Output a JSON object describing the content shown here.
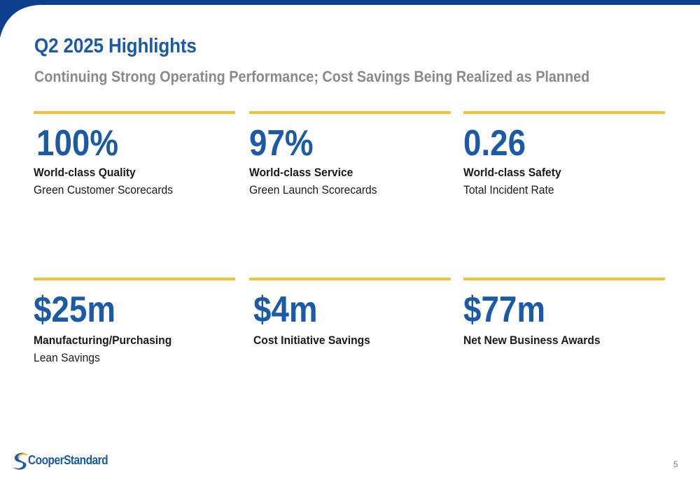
{
  "slide": {
    "title": "Q2 2025 Highlights",
    "subtitle": "Continuing Strong Operating Performance; Cost Savings Being Realized as Planned"
  },
  "metrics": [
    {
      "value": "100%",
      "label": "World-class Quality",
      "desc": "Green Customer Scorecards"
    },
    {
      "value": "97%",
      "label": "World-class Service",
      "desc": "Green Launch Scorecards"
    },
    {
      "value": "0.26",
      "label": "World-class Safety",
      "desc": "Total Incident Rate"
    },
    {
      "value": "$25m",
      "label": "Manufacturing/Purchasing",
      "desc": "Lean Savings"
    },
    {
      "value": "$4m",
      "label": "Cost Initiative Savings",
      "desc": ""
    },
    {
      "value": "$77m",
      "label": "Net New Business Awards",
      "desc": ""
    }
  ],
  "logo": {
    "text": "CooperStandard"
  },
  "page_number": "5",
  "colors": {
    "brand_blue": "#1b5aa6",
    "band_blue": "#0d3f8f",
    "accent_gold": "#f0c23a",
    "subtitle_gray": "#8a8a8a",
    "text_dark": "#1a1a1a"
  }
}
